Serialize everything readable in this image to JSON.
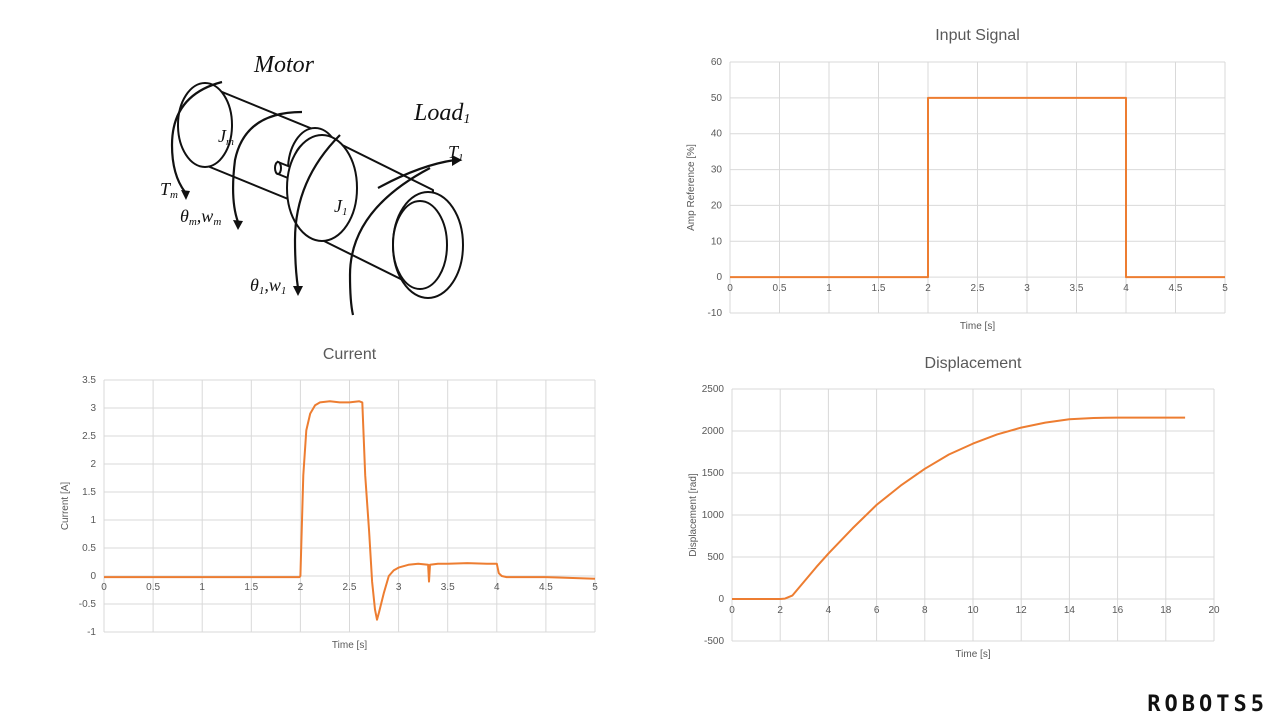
{
  "diagram": {
    "motor_label": "Motor",
    "load_label": "Load",
    "load_sub": "1",
    "jm_main": "J",
    "jm_sub": "m",
    "j1_main": "J",
    "j1_sub": "1",
    "tm_main": "T",
    "tm_sub": "m",
    "t1_main": "T",
    "t1_sub": "1",
    "thetam_a": "θ",
    "thetam_a_sub": "m",
    "thetam_b": ",w",
    "thetam_b_sub": "m",
    "theta1_a": "θ",
    "theta1_a_sub": "1",
    "theta1_b": ",w",
    "theta1_b_sub": "1"
  },
  "brand": "ROBOTS5",
  "chart_data": [
    {
      "id": "input",
      "type": "line",
      "title": "Input Signal",
      "xlabel": "Time [s]",
      "ylabel": "Amp Reference  [%]",
      "xlim": [
        0,
        5
      ],
      "ylim": [
        -10,
        60
      ],
      "xticks": [
        0,
        0.5,
        1,
        1.5,
        2,
        2.5,
        3,
        3.5,
        4,
        4.5,
        5
      ],
      "yticks": [
        -10,
        0,
        10,
        20,
        30,
        40,
        50,
        60
      ],
      "grid": true,
      "series": [
        {
          "x": [
            0,
            2,
            2,
            4,
            4,
            5
          ],
          "y": [
            0,
            0,
            50,
            50,
            0,
            0
          ]
        }
      ]
    },
    {
      "id": "current",
      "type": "line",
      "title": "Current",
      "xlabel": "Time [s]",
      "ylabel": "Current [A]",
      "xlim": [
        0,
        5
      ],
      "ylim": [
        -1,
        3.5
      ],
      "xticks": [
        0,
        0.5,
        1,
        1.5,
        2,
        2.5,
        3,
        3.5,
        4,
        4.5,
        5
      ],
      "yticks": [
        -1,
        -0.5,
        0,
        0.5,
        1,
        1.5,
        2,
        2.5,
        3,
        3.5
      ],
      "grid": true,
      "series": [
        {
          "x": [
            0,
            1.0,
            1.99,
            2.0,
            2.03,
            2.06,
            2.1,
            2.15,
            2.2,
            2.3,
            2.4,
            2.5,
            2.6,
            2.63,
            2.66,
            2.7,
            2.73,
            2.76,
            2.78,
            2.8,
            2.85,
            2.9,
            2.95,
            3.0,
            3.1,
            3.2,
            3.3,
            3.31,
            3.32,
            3.4,
            3.5,
            3.7,
            3.9,
            4.0,
            4.02,
            4.05,
            4.1,
            4.3,
            4.5,
            4.7,
            5.0
          ],
          "y": [
            -0.02,
            -0.02,
            -0.02,
            0.0,
            1.8,
            2.6,
            2.9,
            3.05,
            3.1,
            3.12,
            3.1,
            3.1,
            3.12,
            3.1,
            1.8,
            0.8,
            -0.1,
            -0.6,
            -0.78,
            -0.65,
            -0.3,
            0.0,
            0.1,
            0.15,
            0.2,
            0.22,
            0.2,
            -0.1,
            0.2,
            0.22,
            0.22,
            0.23,
            0.22,
            0.22,
            0.05,
            0.0,
            -0.02,
            -0.02,
            -0.02,
            -0.03,
            -0.05
          ]
        }
      ]
    },
    {
      "id": "disp",
      "type": "line",
      "title": "Displacement",
      "xlabel": "Time [s]",
      "ylabel": "Displacement [rad]",
      "xlim": [
        0,
        20
      ],
      "ylim": [
        -500,
        2500
      ],
      "xticks": [
        0,
        2,
        4,
        6,
        8,
        10,
        12,
        14,
        16,
        18,
        20
      ],
      "yticks": [
        -500,
        0,
        500,
        1000,
        1500,
        2000,
        2500
      ],
      "grid": true,
      "series": [
        {
          "x": [
            0,
            1,
            2,
            2.2,
            2.5,
            3,
            3.5,
            4,
            5,
            6,
            7,
            8,
            9,
            10,
            11,
            12,
            13,
            14,
            15,
            15.5,
            16,
            17,
            18,
            18.8
          ],
          "y": [
            0,
            0,
            0,
            5,
            40,
            210,
            380,
            540,
            840,
            1120,
            1350,
            1550,
            1720,
            1850,
            1960,
            2040,
            2100,
            2140,
            2155,
            2158,
            2160,
            2160,
            2160,
            2160
          ]
        }
      ]
    }
  ]
}
